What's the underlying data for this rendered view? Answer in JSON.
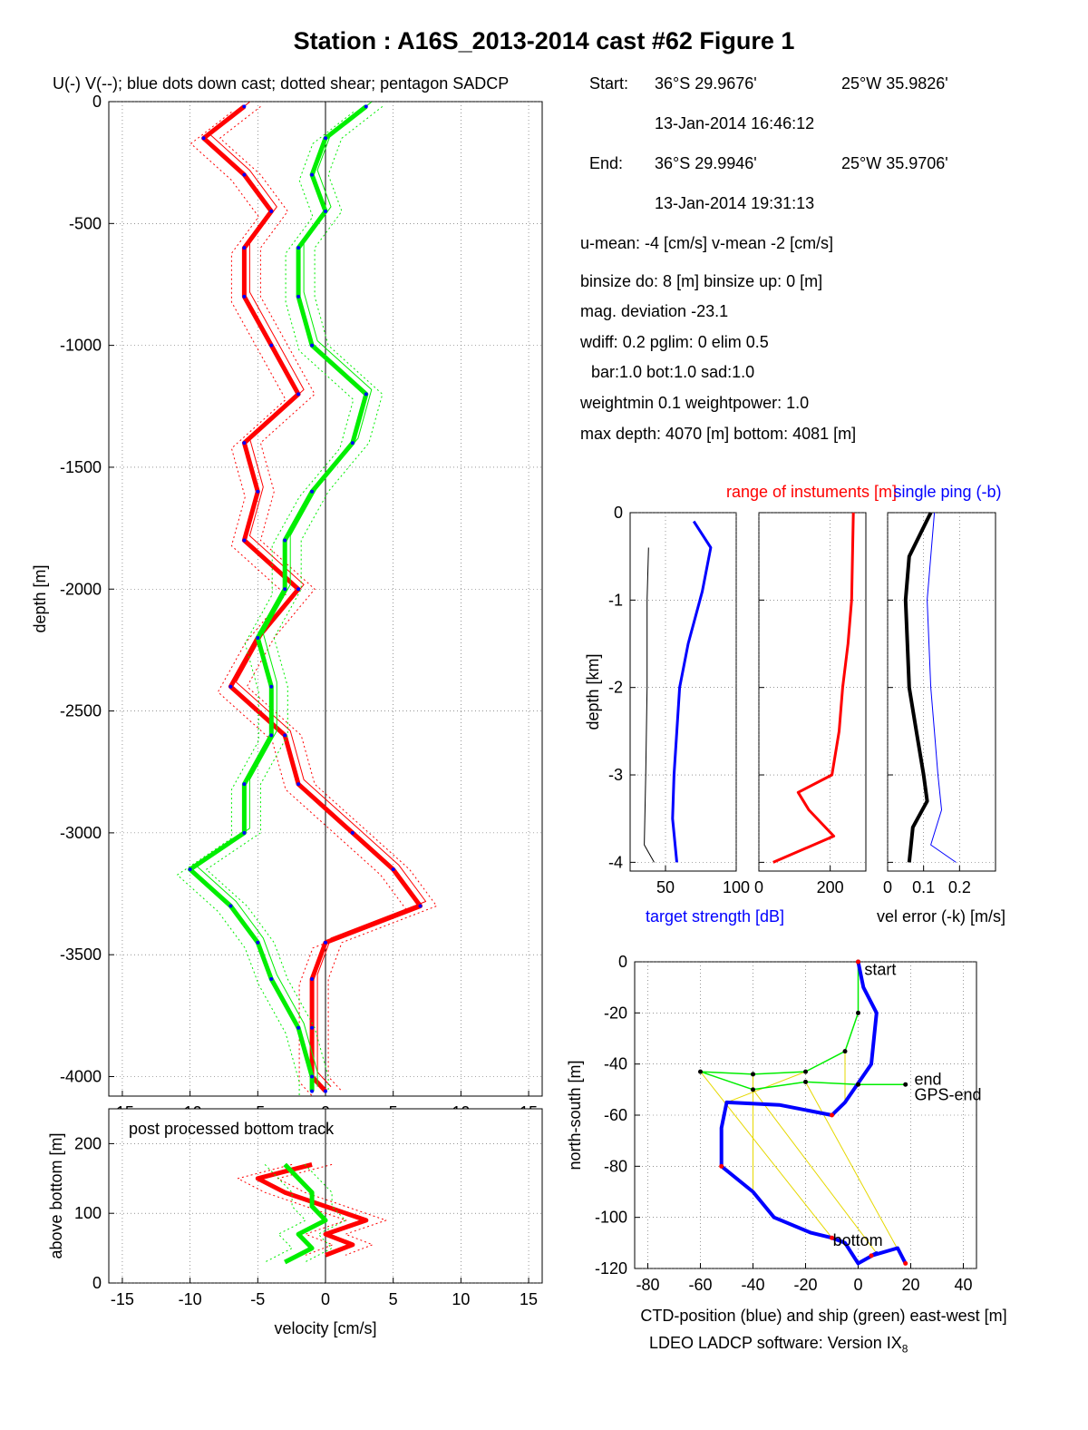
{
  "title": "Station : A16S_2013-2014 cast #62  Figure 1",
  "colors": {
    "u": "#ff0000",
    "v": "#00ee00",
    "ctd": "#0000ff",
    "black": "#000000",
    "yellow": "#ffff00"
  },
  "info": {
    "start_label": "Start:",
    "start_lat": "36°S 29.9676'",
    "start_lon": "25°W 35.9826'",
    "start_time": "13-Jan-2014 16:46:12",
    "end_label": "End:",
    "end_lat": "36°S 29.9946'",
    "end_lon": "25°W 35.9706'",
    "end_time": "13-Jan-2014 19:31:13",
    "means": "u-mean:  -4 [cm/s]    v-mean  -2 [cm/s]",
    "binsize": "binsize do:  8 [m]  binsize up:   0 [m]",
    "magdev": "mag. deviation -23.1",
    "wdiff": "wdiff:  0.2  pglim:  0  elim 0.5",
    "bar": "bar:1.0 bot:1.0 sad:1.0",
    "weight": "weightmin 0.1  weightpower:  1.0",
    "depth": "max depth:  4070 [m]   bottom:  4081 [m]"
  },
  "footer": {
    "software": "LDEO LADCP software: Version IX",
    "subscript": "8"
  },
  "chart_data": [
    {
      "type": "line",
      "name": "main-profile",
      "title": "U(-) V(--); blue dots down cast; dotted shear; pentagon SADCP",
      "xlabel": "velocity [cm/s]",
      "ylabel": "depth [m]",
      "xlim": [
        -16,
        16
      ],
      "ylim": [
        -4080,
        0
      ],
      "xticks": [
        -15,
        -10,
        -5,
        0,
        5,
        10,
        15
      ],
      "yticks": [
        0,
        -500,
        -1000,
        -1500,
        -2000,
        -2500,
        -3000,
        -3500,
        -4000
      ],
      "grid": true,
      "series": [
        {
          "key": "u",
          "depth": [
            -20,
            -150,
            -300,
            -450,
            -600,
            -800,
            -1000,
            -1200,
            -1400,
            -1600,
            -1800,
            -2000,
            -2200,
            -2400,
            -2600,
            -2800,
            -3000,
            -3150,
            -3300,
            -3450,
            -3600,
            -3800,
            -4000,
            -4060
          ],
          "values": [
            -6,
            -9,
            -6,
            -4,
            -6,
            -6,
            -4,
            -2,
            -6,
            -5,
            -6,
            -2,
            -5,
            -7,
            -3,
            -2,
            2,
            5,
            7,
            0,
            -1,
            -1,
            -1,
            0
          ]
        },
        {
          "key": "v",
          "depth": [
            -20,
            -150,
            -300,
            -450,
            -600,
            -800,
            -1000,
            -1200,
            -1400,
            -1600,
            -1800,
            -2000,
            -2200,
            -2400,
            -2600,
            -2800,
            -3000,
            -3150,
            -3300,
            -3450,
            -3600,
            -3800,
            -4000,
            -4060
          ],
          "values": [
            3,
            0,
            -1,
            0,
            -2,
            -2,
            -1,
            3,
            2,
            -1,
            -3,
            -3,
            -5,
            -4,
            -4,
            -6,
            -6,
            -10,
            -7,
            -5,
            -4,
            -2,
            -1,
            -1
          ]
        }
      ]
    },
    {
      "type": "line",
      "name": "bottom-track",
      "annotation": "post processed bottom track",
      "xlabel": "velocity [cm/s]",
      "ylabel": "above bottom [m]",
      "xlim": [
        -16,
        16
      ],
      "ylim": [
        0,
        250
      ],
      "xticks": [
        -15,
        -10,
        -5,
        0,
        5,
        10,
        15
      ],
      "yticks": [
        0,
        100,
        200
      ],
      "grid": true,
      "series": [
        {
          "key": "u",
          "height": [
            170,
            160,
            150,
            130,
            110,
            90,
            70,
            55,
            40
          ],
          "values": [
            -1,
            -3,
            -5,
            -3,
            0,
            3,
            0,
            2,
            0
          ]
        },
        {
          "key": "v",
          "height": [
            170,
            150,
            130,
            110,
            90,
            70,
            50,
            30
          ],
          "values": [
            -3,
            -2,
            -1,
            -1,
            0,
            -2,
            -1,
            -3
          ]
        }
      ]
    },
    {
      "type": "line",
      "name": "target-strength",
      "xlabel": "target strength [dB]",
      "ylabel": "depth [km]",
      "xlim": [
        25,
        100
      ],
      "ylim": [
        -4.1,
        0
      ],
      "xticks": [
        50,
        100
      ],
      "yticks": [
        0,
        -1,
        -2,
        -3,
        -4
      ],
      "grid": true,
      "series": [
        {
          "key": "ctd",
          "depth": [
            -0.1,
            -0.4,
            -0.9,
            -1.5,
            -2.0,
            -2.5,
            -3.0,
            -3.5,
            -4.0
          ],
          "values": [
            70,
            82,
            76,
            66,
            60,
            58,
            56,
            55,
            58
          ]
        },
        {
          "key": "black",
          "depth": [
            -0.4,
            -1.0,
            -2.0,
            -3.0,
            -3.8,
            -4.0
          ],
          "values": [
            38,
            37,
            37,
            36,
            35,
            42
          ]
        }
      ]
    },
    {
      "type": "line",
      "name": "range-of-instruments",
      "title": "range of instuments [m]",
      "xlim": [
        0,
        300
      ],
      "ylim": [
        -4.1,
        0
      ],
      "xticks": [
        0,
        200
      ],
      "grid": true,
      "series": [
        {
          "key": "u",
          "depth": [
            0,
            -1.0,
            -1.5,
            -2.0,
            -2.5,
            -3.0,
            -3.2,
            -3.4,
            -3.7,
            -4.0
          ],
          "values": [
            265,
            260,
            250,
            235,
            225,
            205,
            110,
            140,
            210,
            40
          ]
        }
      ]
    },
    {
      "type": "line",
      "name": "vel-error",
      "title": "single ping (-b)",
      "xlabel": "vel error (-k) [m/s]",
      "xlim": [
        0,
        0.3
      ],
      "ylim": [
        -4.1,
        0
      ],
      "xticks": [
        0,
        0.1,
        0.2
      ],
      "grid": true,
      "series": [
        {
          "key": "black",
          "depth": [
            0,
            -0.5,
            -1.0,
            -2.0,
            -2.5,
            -3.0,
            -3.3,
            -3.6,
            -4.0
          ],
          "values": [
            0.12,
            0.06,
            0.05,
            0.06,
            0.08,
            0.1,
            0.11,
            0.07,
            0.06
          ]
        },
        {
          "key": "ctd",
          "depth": [
            0,
            -0.5,
            -1.0,
            -2.0,
            -2.5,
            -3.0,
            -3.4,
            -3.8,
            -4.0
          ],
          "values": [
            0.13,
            0.12,
            0.11,
            0.12,
            0.13,
            0.14,
            0.15,
            0.12,
            0.19
          ]
        }
      ]
    },
    {
      "type": "line",
      "name": "track",
      "xlabel": "CTD-position (blue) and ship (green) east-west [m]",
      "ylabel": "north-south [m]",
      "xlim": [
        -85,
        45
      ],
      "ylim": [
        -120,
        0
      ],
      "xticks": [
        -80,
        -60,
        -40,
        -20,
        0,
        20,
        40
      ],
      "yticks": [
        0,
        -20,
        -40,
        -60,
        -80,
        -100,
        -120
      ],
      "grid": true,
      "labels": [
        "start",
        "end",
        "GPS-end",
        "bottom"
      ],
      "series": [
        {
          "key": "ctd",
          "x": [
            0,
            2,
            7,
            5,
            -5,
            -10,
            -30,
            -50,
            -52,
            -52,
            -40,
            -32,
            -18,
            -10,
            -5,
            0,
            7,
            5,
            15,
            18
          ],
          "y": [
            0,
            -10,
            -20,
            -40,
            -55,
            -60,
            -56,
            -55,
            -65,
            -80,
            -90,
            -100,
            -106,
            -108,
            -110,
            -118,
            -114,
            -115,
            -112,
            -118
          ]
        },
        {
          "key": "v",
          "x": [
            0,
            0,
            -5,
            -20,
            -40,
            -60,
            -40,
            -20,
            0,
            18
          ],
          "y": [
            0,
            -20,
            -35,
            -43,
            -44,
            -43,
            -50,
            -47,
            -48,
            -48
          ]
        }
      ]
    }
  ]
}
